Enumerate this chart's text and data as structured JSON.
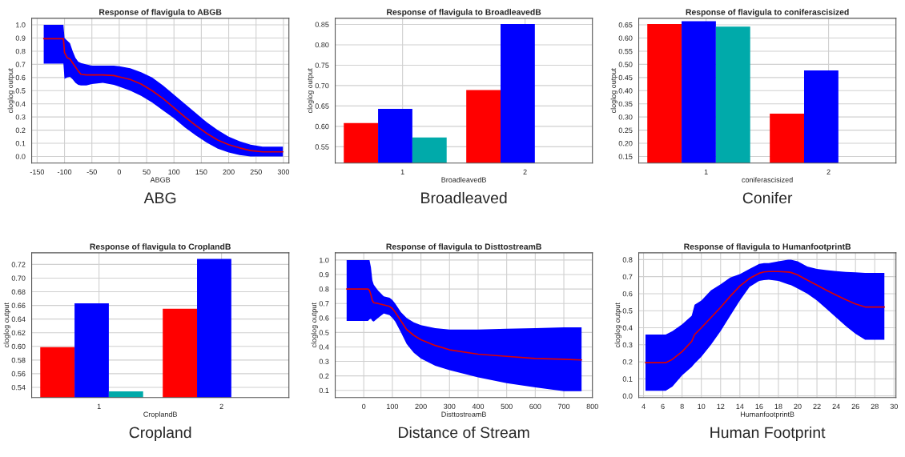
{
  "chart_data": [
    {
      "type": "line",
      "title": "Response of flavigula to ABGB",
      "xlabel": "ABGB",
      "ylabel": "cloglog output",
      "annotations": [
        "ABG"
      ],
      "grid": true,
      "marker": "none",
      "xlim": [
        -160,
        310
      ],
      "xticks": [
        -150,
        -100,
        -50,
        0,
        50,
        100,
        150,
        200,
        250,
        300
      ],
      "ylim": [
        -0.05,
        1.05
      ],
      "yticks": [
        {
          "value": 0,
          "label": "0.0"
        },
        0.1,
        0.2,
        0.3,
        0.4,
        0.5,
        0.6,
        0.7,
        0.8,
        0.9,
        {
          "value": 1,
          "label": "1.0"
        }
      ],
      "x": [
        -138,
        -102,
        -100,
        -95,
        -90,
        -85,
        -80,
        -75,
        -70,
        -60,
        -50,
        -30,
        -10,
        0,
        20,
        40,
        60,
        80,
        100,
        120,
        140,
        160,
        180,
        200,
        220,
        240,
        262,
        299
      ],
      "series": [
        {
          "color": "#dd0000",
          "values": [
            0.895,
            0.895,
            0.79,
            0.75,
            0.74,
            0.71,
            0.68,
            0.65,
            0.625,
            0.62,
            0.62,
            0.62,
            0.615,
            0.605,
            0.585,
            0.55,
            0.5,
            0.44,
            0.37,
            0.3,
            0.235,
            0.175,
            0.125,
            0.09,
            0.065,
            0.045,
            0.035,
            0.035
          ],
          "upper": [
            1.0,
            1.0,
            0.9,
            0.88,
            0.86,
            0.8,
            0.75,
            0.72,
            0.71,
            0.7,
            0.69,
            0.69,
            0.69,
            0.685,
            0.67,
            0.64,
            0.6,
            0.54,
            0.47,
            0.4,
            0.33,
            0.26,
            0.2,
            0.15,
            0.115,
            0.09,
            0.075,
            0.075
          ],
          "lower": [
            0.705,
            0.705,
            0.59,
            0.6,
            0.605,
            0.585,
            0.56,
            0.545,
            0.54,
            0.54,
            0.55,
            0.56,
            0.545,
            0.53,
            0.5,
            0.46,
            0.41,
            0.35,
            0.29,
            0.22,
            0.16,
            0.105,
            0.06,
            0.03,
            0.01,
            0.0,
            0.0,
            0.0
          ]
        }
      ]
    },
    {
      "type": "bar",
      "title": "Response of flavigula to BroadleavedB",
      "xlabel": "BroadleavedB",
      "ylabel": "cloglog output",
      "annotations": [
        "Broadleaved"
      ],
      "grid": true,
      "categories": [
        "1",
        "2"
      ],
      "ylim": [
        0.51,
        0.865
      ],
      "yticks": [
        0.55,
        {
          "value": 0.6,
          "label": "0.60"
        },
        0.65,
        {
          "value": 0.7,
          "label": "0.70"
        },
        0.75,
        {
          "value": 0.8,
          "label": "0.80"
        },
        0.85
      ],
      "series": [
        {
          "color": "#ff0000",
          "values": [
            0.608,
            0.689
          ]
        },
        {
          "color": "#0000ff",
          "values": [
            0.643,
            0.851
          ]
        },
        {
          "color": "#00aaaa",
          "values": [
            0.573,
            null
          ]
        }
      ]
    },
    {
      "type": "bar",
      "title": "Response of flavigula to coniferascisized",
      "xlabel": "coniferascisized",
      "ylabel": "cloglog output",
      "annotations": [
        "Conifer"
      ],
      "grid": true,
      "categories": [
        "1",
        "2"
      ],
      "ylim": [
        0.125,
        0.675
      ],
      "yticks": [
        0.15,
        {
          "value": 0.2,
          "label": "0.20"
        },
        0.25,
        {
          "value": 0.3,
          "label": "0.30"
        },
        0.35,
        {
          "value": 0.4,
          "label": "0.40"
        },
        0.45,
        {
          "value": 0.5,
          "label": "0.50"
        },
        0.55,
        {
          "value": 0.6,
          "label": "0.60"
        },
        0.65
      ],
      "series": [
        {
          "color": "#ff0000",
          "values": [
            0.653,
            0.313
          ]
        },
        {
          "color": "#0000ff",
          "values": [
            0.664,
            0.477
          ]
        },
        {
          "color": "#00aaaa",
          "values": [
            0.643,
            null
          ]
        }
      ]
    },
    {
      "type": "bar",
      "title": "Response of flavigula to CroplandB",
      "xlabel": "CroplandB",
      "ylabel": "cloglog output",
      "annotations": [
        "Cropland"
      ],
      "grid": true,
      "categories": [
        "1",
        "2"
      ],
      "ylim": [
        0.525,
        0.737
      ],
      "yticks": [
        0.54,
        0.56,
        0.58,
        {
          "value": 0.6,
          "label": "0.60"
        },
        0.62,
        0.64,
        0.66,
        0.68,
        {
          "value": 0.7,
          "label": "0.70"
        },
        0.72
      ],
      "series": [
        {
          "color": "#ff0000",
          "values": [
            0.599,
            0.655
          ]
        },
        {
          "color": "#0000ff",
          "values": [
            0.663,
            0.728
          ]
        },
        {
          "color": "#00aaaa",
          "values": [
            0.534,
            null
          ]
        }
      ]
    },
    {
      "type": "line",
      "title": "Response of flavigula to DisttostreamB",
      "xlabel": "DisttostreamB",
      "ylabel": "cloglog output",
      "annotations": [
        "Distance of Stream"
      ],
      "grid": true,
      "marker": "none",
      "xlim": [
        -100,
        800
      ],
      "xticks": [
        0,
        100,
        200,
        300,
        400,
        500,
        600,
        700,
        800
      ],
      "ylim": [
        0.05,
        1.05
      ],
      "yticks": [
        0.1,
        0.2,
        0.3,
        0.4,
        0.5,
        0.6,
        0.7,
        0.8,
        0.9,
        {
          "value": 1,
          "label": "1.0"
        }
      ],
      "x": [
        -60,
        15,
        20,
        25,
        30,
        35,
        50,
        70,
        90,
        100,
        110,
        130,
        150,
        175,
        200,
        250,
        300,
        400,
        500,
        600,
        700,
        762
      ],
      "series": [
        {
          "color": "#dd0000",
          "values": [
            0.8,
            0.8,
            0.79,
            0.76,
            0.72,
            0.705,
            0.7,
            0.69,
            0.68,
            0.665,
            0.64,
            0.58,
            0.52,
            0.48,
            0.45,
            0.41,
            0.38,
            0.35,
            0.335,
            0.32,
            0.315,
            0.31
          ],
          "upper": [
            1.0,
            1.0,
            1.0,
            0.95,
            0.86,
            0.83,
            0.79,
            0.75,
            0.74,
            0.725,
            0.7,
            0.64,
            0.6,
            0.57,
            0.55,
            0.53,
            0.52,
            0.52,
            0.525,
            0.53,
            0.535,
            0.535
          ],
          "lower": [
            0.58,
            0.58,
            0.59,
            0.595,
            0.58,
            0.575,
            0.6,
            0.63,
            0.62,
            0.6,
            0.575,
            0.5,
            0.42,
            0.36,
            0.32,
            0.27,
            0.24,
            0.19,
            0.15,
            0.12,
            0.095,
            0.095
          ]
        }
      ]
    },
    {
      "type": "line",
      "title": "Response of flavigula to HumanfootprintB",
      "xlabel": "HumanfootprintB",
      "ylabel": "cloglog output",
      "annotations": [
        "Human Footprint"
      ],
      "grid": true,
      "marker": "none",
      "xlim": [
        3.5,
        30.2
      ],
      "xticks": [
        4,
        6,
        8,
        10,
        12,
        14,
        16,
        18,
        20,
        22,
        24,
        26,
        28,
        30
      ],
      "ylim": [
        -0.01,
        0.84
      ],
      "yticks": [
        {
          "value": 0,
          "label": "0.0"
        },
        0.1,
        0.2,
        0.3,
        0.4,
        0.5,
        0.6,
        0.7,
        0.8
      ],
      "x": [
        4.2,
        6.3,
        7,
        8,
        9,
        9.3,
        10,
        11,
        12,
        13,
        14,
        15,
        16,
        16.5,
        17,
        18,
        19,
        19.3,
        20,
        21,
        22,
        23,
        24,
        25,
        26,
        27,
        29
      ],
      "series": [
        {
          "color": "#dd0000",
          "values": [
            0.195,
            0.195,
            0.215,
            0.26,
            0.32,
            0.36,
            0.4,
            0.46,
            0.52,
            0.585,
            0.645,
            0.69,
            0.72,
            0.728,
            0.73,
            0.73,
            0.727,
            0.725,
            0.71,
            0.68,
            0.65,
            0.62,
            0.592,
            0.565,
            0.54,
            0.522,
            0.522
          ],
          "upper": [
            0.36,
            0.36,
            0.38,
            0.42,
            0.47,
            0.535,
            0.56,
            0.62,
            0.655,
            0.695,
            0.715,
            0.745,
            0.775,
            0.78,
            0.78,
            0.79,
            0.8,
            0.8,
            0.79,
            0.76,
            0.745,
            0.738,
            0.733,
            0.728,
            0.725,
            0.722,
            0.722
          ],
          "lower": [
            0.03,
            0.03,
            0.055,
            0.12,
            0.17,
            0.19,
            0.23,
            0.3,
            0.38,
            0.47,
            0.56,
            0.64,
            0.675,
            0.68,
            0.682,
            0.675,
            0.655,
            0.65,
            0.63,
            0.6,
            0.56,
            0.51,
            0.46,
            0.41,
            0.365,
            0.33,
            0.33
          ]
        }
      ]
    }
  ]
}
